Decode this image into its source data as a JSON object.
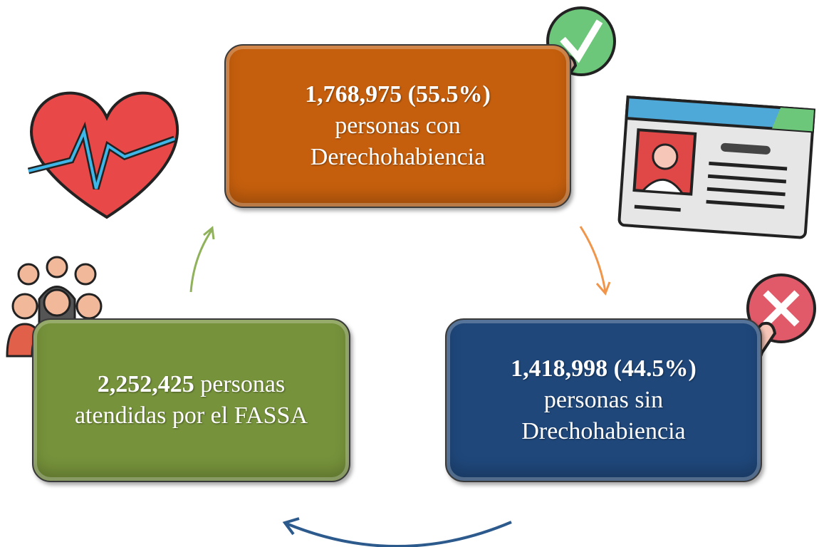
{
  "nodes": [
    {
      "value_text": "1,768,975 (55.5%)",
      "lines": [
        "personas con",
        "Derechohabiencia"
      ]
    },
    {
      "value_text": "1,418,998 (44.5%)",
      "lines": [
        "personas sin",
        "Drechohabiencia"
      ]
    },
    {
      "value_text": "2,252,425",
      "lines": [
        "personas",
        "atendidas por el FASSA"
      ]
    }
  ]
}
